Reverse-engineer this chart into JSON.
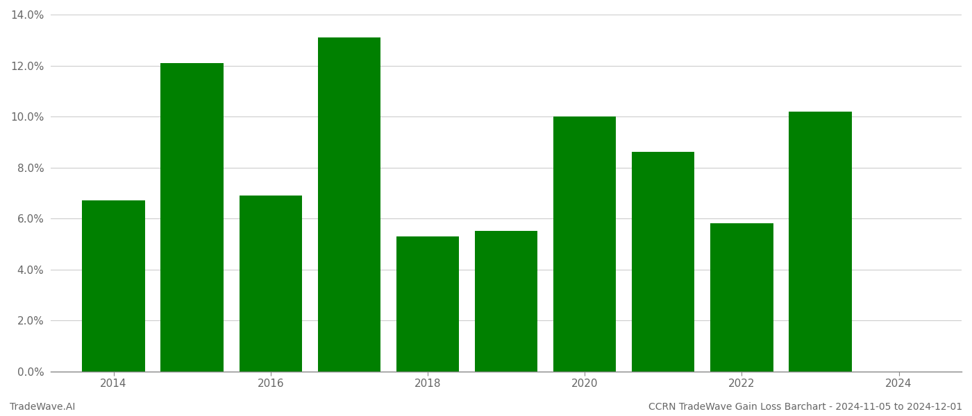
{
  "years": [
    2014,
    2015,
    2016,
    2017,
    2018,
    2019,
    2020,
    2021,
    2022,
    2023
  ],
  "values": [
    0.067,
    0.121,
    0.069,
    0.131,
    0.053,
    0.055,
    0.1,
    0.086,
    0.058,
    0.102
  ],
  "bar_color": "#008000",
  "background_color": "#ffffff",
  "grid_color": "#cccccc",
  "footer_left": "TradeWave.AI",
  "footer_right": "CCRN TradeWave Gain Loss Barchart - 2024-11-05 to 2024-12-01",
  "ylim": [
    0,
    0.14
  ],
  "ytick_step": 0.02,
  "footer_fontsize": 10,
  "tick_fontsize": 11,
  "bar_width": 0.8,
  "xlim_left": 2013.2,
  "xlim_right": 2024.8,
  "xticks": [
    2014,
    2016,
    2018,
    2020,
    2022,
    2024
  ]
}
